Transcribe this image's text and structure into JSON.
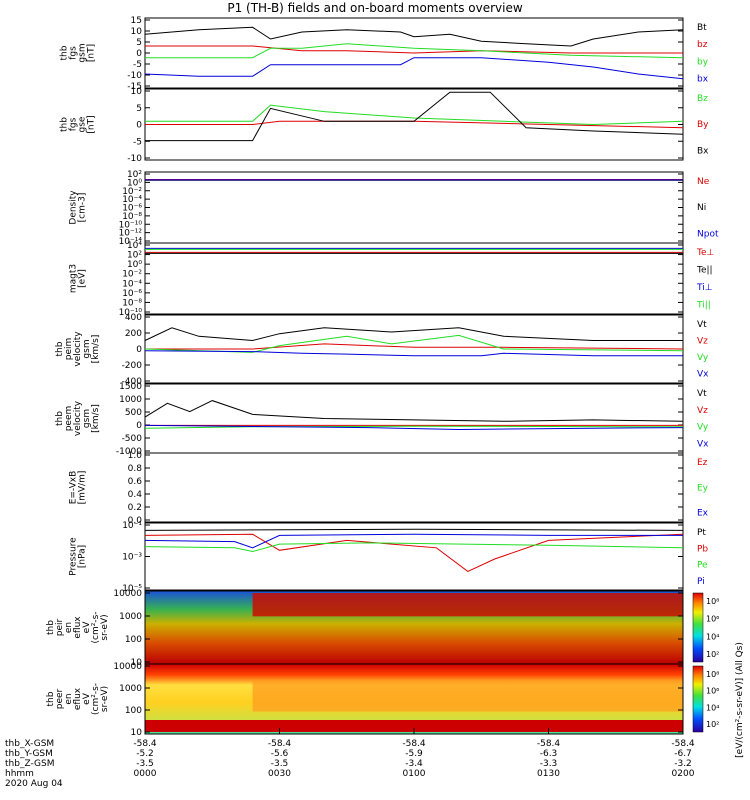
{
  "title": "P1 (TH-B) fields and on-board moments overview",
  "colors": {
    "black": "#000000",
    "red": "#dd0000",
    "green": "#22dd22",
    "blue": "#0000dd"
  },
  "chart_data": [
    {
      "type": "line",
      "id": "p1",
      "ylabel": [
        "thb",
        "fgs",
        "gsm",
        "[nT]"
      ],
      "yticks": [
        "15",
        "10",
        "5",
        "0",
        "-5",
        "-10",
        "-15"
      ],
      "ylim": [
        -15,
        15
      ],
      "series": [
        {
          "name": "Bt",
          "color": "black",
          "points": [
            [
              0,
              8
            ],
            [
              12,
              10
            ],
            [
              24,
              11
            ],
            [
              28,
              6
            ],
            [
              35,
              9
            ],
            [
              45,
              10
            ],
            [
              57,
              9
            ],
            [
              60,
              7
            ],
            [
              68,
              8
            ],
            [
              75,
              5
            ],
            [
              85,
              4
            ],
            [
              95,
              3
            ],
            [
              100,
              6
            ],
            [
              110,
              9
            ],
            [
              120,
              10
            ]
          ]
        },
        {
          "name": "bz",
          "color": "red",
          "points": [
            [
              0,
              3
            ],
            [
              24,
              3
            ],
            [
              35,
              1
            ],
            [
              45,
              1
            ],
            [
              60,
              0
            ],
            [
              75,
              1
            ],
            [
              95,
              0
            ],
            [
              120,
              0
            ]
          ]
        },
        {
          "name": "by",
          "color": "green",
          "points": [
            [
              0,
              -2
            ],
            [
              24,
              -2
            ],
            [
              28,
              2
            ],
            [
              35,
              2
            ],
            [
              45,
              4
            ],
            [
              60,
              2
            ],
            [
              75,
              1
            ],
            [
              95,
              -1
            ],
            [
              120,
              -2
            ]
          ]
        },
        {
          "name": "bx",
          "color": "blue",
          "points": [
            [
              0,
              -9
            ],
            [
              12,
              -10
            ],
            [
              24,
              -10
            ],
            [
              28,
              -5
            ],
            [
              35,
              -5
            ],
            [
              57,
              -5
            ],
            [
              60,
              -2
            ],
            [
              75,
              -2
            ],
            [
              90,
              -4
            ],
            [
              100,
              -6
            ],
            [
              110,
              -9
            ],
            [
              120,
              -11
            ]
          ]
        }
      ]
    },
    {
      "type": "line",
      "id": "p2",
      "ylabel": [
        "thb",
        "fgs",
        "gse",
        "[nT]"
      ],
      "yticks": [
        "10",
        "5",
        "0",
        "-5",
        "-10"
      ],
      "ylim": [
        -12,
        10
      ],
      "series": [
        {
          "name": "Bz",
          "color": "green",
          "points": [
            [
              0,
              0
            ],
            [
              24,
              0
            ],
            [
              28,
              5
            ],
            [
              40,
              3
            ],
            [
              60,
              1
            ],
            [
              80,
              0
            ],
            [
              100,
              -1
            ],
            [
              120,
              0
            ]
          ]
        },
        {
          "name": "By",
          "color": "red",
          "points": [
            [
              0,
              -1
            ],
            [
              24,
              -1
            ],
            [
              30,
              0
            ],
            [
              60,
              0
            ],
            [
              90,
              -1
            ],
            [
              120,
              -2
            ]
          ]
        },
        {
          "name": "Bx",
          "color": "black",
          "points": [
            [
              0,
              -6
            ],
            [
              24,
              -6
            ],
            [
              28,
              4
            ],
            [
              40,
              0
            ],
            [
              60,
              0
            ],
            [
              68,
              9
            ],
            [
              77,
              9
            ],
            [
              85,
              -2
            ],
            [
              100,
              -3
            ],
            [
              120,
              -4
            ]
          ]
        }
      ]
    },
    {
      "type": "line",
      "id": "p3",
      "yscale": "log",
      "ylabel": [
        "Density",
        "[cm-3]"
      ],
      "yticks": [
        "10²",
        "10⁰",
        "10⁻²",
        "10⁻⁴",
        "10⁻⁶",
        "10⁻⁸",
        "10⁻¹⁰",
        "10⁻¹²",
        "10⁻¹⁴"
      ],
      "ylim": [
        -14,
        2.2
      ],
      "series": [
        {
          "name": "Ne",
          "color": "red",
          "points": [
            [
              0,
              0.5
            ],
            [
              60,
              0.5
            ],
            [
              120,
              0.5
            ]
          ]
        },
        {
          "name": "Ni",
          "color": "black",
          "points": [
            [
              0,
              0.3
            ],
            [
              60,
              0.3
            ],
            [
              120,
              0.3
            ]
          ]
        },
        {
          "name": "Npot",
          "color": "blue",
          "points": [
            [
              0,
              0.4
            ],
            [
              60,
              0.4
            ],
            [
              120,
              0.4
            ]
          ]
        }
      ]
    },
    {
      "type": "line",
      "id": "p4",
      "yscale": "log",
      "ylabel": [
        "magt3",
        "[eV]"
      ],
      "yticks": [
        "10⁴",
        "10²",
        "10⁰",
        "10⁻²",
        "10⁻⁴",
        "10⁻⁶",
        "10⁻⁸",
        "10⁻¹⁰"
      ],
      "ylim": [
        -10,
        4.4
      ],
      "series": [
        {
          "name": "Te⊥",
          "color": "red",
          "points": [
            [
              0,
              2.5
            ],
            [
              120,
              2.5
            ]
          ]
        },
        {
          "name": "Te||",
          "color": "black",
          "points": [
            [
              0,
              2.3
            ],
            [
              120,
              2.3
            ]
          ]
        },
        {
          "name": "Ti⊥",
          "color": "blue",
          "points": [
            [
              0,
              3.3
            ],
            [
              120,
              3.3
            ]
          ]
        },
        {
          "name": "Ti||",
          "color": "green",
          "points": [
            [
              0,
              3.1
            ],
            [
              120,
              3.1
            ]
          ]
        }
      ]
    },
    {
      "type": "line",
      "id": "p5",
      "ylabel": [
        "thb",
        "peim",
        "velocity",
        "gsm",
        "[km/s]"
      ],
      "yticks": [
        "400",
        "200",
        "0",
        "-200",
        "-400"
      ],
      "ylim": [
        -400,
        400
      ],
      "series": [
        {
          "name": "Vt",
          "color": "black",
          "points": [
            [
              0,
              100
            ],
            [
              6,
              250
            ],
            [
              12,
              150
            ],
            [
              24,
              100
            ],
            [
              30,
              180
            ],
            [
              40,
              250
            ],
            [
              55,
              200
            ],
            [
              70,
              250
            ],
            [
              80,
              150
            ],
            [
              100,
              100
            ],
            [
              120,
              100
            ]
          ]
        },
        {
          "name": "Vz",
          "color": "red",
          "points": [
            [
              0,
              0
            ],
            [
              24,
              0
            ],
            [
              40,
              60
            ],
            [
              60,
              20
            ],
            [
              80,
              20
            ],
            [
              120,
              0
            ]
          ]
        },
        {
          "name": "Vy",
          "color": "green",
          "points": [
            [
              0,
              0
            ],
            [
              24,
              -40
            ],
            [
              30,
              40
            ],
            [
              45,
              150
            ],
            [
              55,
              60
            ],
            [
              70,
              160
            ],
            [
              80,
              0
            ],
            [
              120,
              -20
            ]
          ]
        },
        {
          "name": "Vx",
          "color": "blue",
          "points": [
            [
              0,
              -20
            ],
            [
              24,
              -30
            ],
            [
              35,
              -50
            ],
            [
              45,
              -60
            ],
            [
              60,
              -80
            ],
            [
              75,
              -80
            ],
            [
              80,
              -50
            ],
            [
              100,
              -80
            ],
            [
              120,
              -80
            ]
          ]
        }
      ]
    },
    {
      "type": "line",
      "id": "p6",
      "ylabel": [
        "thb",
        "peem",
        "velocity",
        "gsm",
        "[km/s]"
      ],
      "yticks": [
        "1500",
        "1000",
        "500",
        "0",
        "-500",
        "-1000"
      ],
      "ylim": [
        -1000,
        1500
      ],
      "series": [
        {
          "name": "Vt",
          "color": "black",
          "points": [
            [
              0,
              300
            ],
            [
              5,
              800
            ],
            [
              10,
              500
            ],
            [
              15,
              900
            ],
            [
              24,
              400
            ],
            [
              40,
              250
            ],
            [
              60,
              200
            ],
            [
              80,
              150
            ],
            [
              100,
              200
            ],
            [
              120,
              150
            ]
          ]
        },
        {
          "name": "Vz",
          "color": "red",
          "points": [
            [
              0,
              0
            ],
            [
              120,
              0
            ]
          ]
        },
        {
          "name": "Vy",
          "color": "green",
          "points": [
            [
              0,
              -100
            ],
            [
              24,
              -50
            ],
            [
              60,
              -30
            ],
            [
              120,
              -50
            ]
          ]
        },
        {
          "name": "Vx",
          "color": "blue",
          "points": [
            [
              0,
              0
            ],
            [
              50,
              -80
            ],
            [
              70,
              -150
            ],
            [
              100,
              -100
            ],
            [
              120,
              -80
            ]
          ]
        }
      ]
    },
    {
      "type": "line",
      "id": "p7",
      "ylabel": [
        "E=-VxB",
        "[mV/m]"
      ],
      "yticks": [
        "1.0",
        "0.8",
        "0.6",
        "0.4",
        "0.2",
        "0.0"
      ],
      "ylim": [
        0,
        1
      ],
      "series": [
        {
          "name": "Ez",
          "color": "red",
          "points": []
        },
        {
          "name": "Ey",
          "color": "green",
          "points": []
        },
        {
          "name": "Ex",
          "color": "blue",
          "points": []
        }
      ]
    },
    {
      "type": "line",
      "id": "p8",
      "yscale": "log",
      "ylabel": [
        "Pressure",
        "[nPa]"
      ],
      "yticks": [
        "10⁻¹",
        "10⁻³",
        "10⁻⁵"
      ],
      "ylim": [
        -6,
        -0.6
      ],
      "series": [
        {
          "name": "Pt",
          "color": "black",
          "points": [
            [
              0,
              -1.2
            ],
            [
              60,
              -1.1
            ],
            [
              120,
              -1.2
            ]
          ]
        },
        {
          "name": "Pb",
          "color": "red",
          "points": [
            [
              0,
              -1.6
            ],
            [
              24,
              -1.5
            ],
            [
              30,
              -2.8
            ],
            [
              45,
              -2.0
            ],
            [
              65,
              -2.6
            ],
            [
              72,
              -4.5
            ],
            [
              78,
              -3.5
            ],
            [
              90,
              -2.0
            ],
            [
              120,
              -1.5
            ]
          ]
        },
        {
          "name": "Pe",
          "color": "green",
          "points": [
            [
              0,
              -2.5
            ],
            [
              20,
              -2.6
            ],
            [
              24,
              -2.9
            ],
            [
              30,
              -2.3
            ],
            [
              50,
              -2.2
            ],
            [
              90,
              -2.4
            ],
            [
              120,
              -2.6
            ]
          ]
        },
        {
          "name": "Pi",
          "color": "blue",
          "points": [
            [
              0,
              -2.0
            ],
            [
              20,
              -2.1
            ],
            [
              24,
              -2.6
            ],
            [
              30,
              -1.6
            ],
            [
              60,
              -1.5
            ],
            [
              90,
              -1.6
            ],
            [
              120,
              -1.6
            ]
          ]
        }
      ]
    },
    {
      "type": "heatmap",
      "id": "p9",
      "yscale": "log",
      "ylabel": [
        "thb",
        "peir",
        "en",
        "eflux",
        "eV",
        "(cm²-s-",
        "sr-eV)"
      ],
      "yticks": [
        "10000",
        "1000",
        "100",
        "10"
      ],
      "ylim": [
        0.6,
        4.2
      ],
      "colorbar": {
        "ticks": [
          "10⁸",
          "10⁶",
          "10⁴",
          "10²"
        ]
      }
    },
    {
      "type": "heatmap",
      "id": "p10",
      "yscale": "log",
      "ylabel": [
        "thb",
        "peer",
        "en",
        "eflux",
        "eV",
        "(cm²-s-",
        "sr-eV)"
      ],
      "yticks": [
        "10000",
        "1000",
        "100",
        "10"
      ],
      "ylim": [
        0.6,
        4.2
      ],
      "colorbar": {
        "ticks": [
          "10⁸",
          "10⁶",
          "10⁴",
          "10²"
        ]
      }
    }
  ],
  "colorbar_label": "[eV/(cm²-s-sr-eV)] (All Qs)",
  "xaxis": {
    "row_labels": [
      "thb_X-GSM",
      "thb_Y-GSM",
      "thb_Z-GSM",
      "hhmm",
      "2020 Aug 04"
    ],
    "ticks": [
      {
        "x": 0,
        "vals": [
          "-58.4",
          "-5.2",
          "-3.5",
          "0000"
        ]
      },
      {
        "x": 30,
        "vals": [
          "-58.4",
          "-5.6",
          "-3.5",
          "0030"
        ]
      },
      {
        "x": 60,
        "vals": [
          "-58.4",
          "-5.9",
          "-3.4",
          "0100"
        ]
      },
      {
        "x": 90,
        "vals": [
          "-58.4",
          "-6.3",
          "-3.3",
          "0130"
        ]
      },
      {
        "x": 120,
        "vals": [
          "-58.4",
          "-6.7",
          "-3.2",
          "0200"
        ]
      }
    ]
  }
}
